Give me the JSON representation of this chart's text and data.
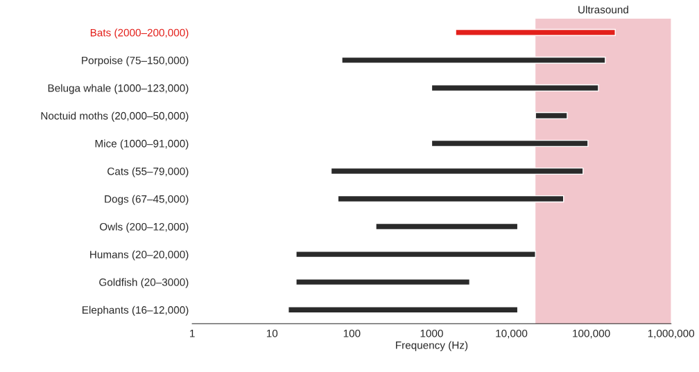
{
  "chart_data": {
    "type": "bar",
    "orientation": "horizontal",
    "xlabel": "Frequency (Hz)",
    "log": "x",
    "categories": [
      "Bats (2000–200,000)",
      "Porpoise (75–150,000)",
      "Beluga whale (1000–123,000)",
      "Noctuid moths (20,000–50,000)",
      "Mice (1000–91,000)",
      "Cats (55–79,000)",
      "Dogs (67–45,000)",
      "Owls (200–12,000)",
      "Humans (20–20,000)",
      "Goldfish (20–3000)",
      "Elephants (16–12,000)"
    ],
    "base": [
      2000,
      75,
      1000,
      20000,
      1000,
      55,
      67,
      200,
      20,
      20,
      16
    ],
    "values": [
      198000,
      149925,
      122000,
      30000,
      90000,
      78945,
      44933,
      11800,
      19980,
      2980,
      11984
    ],
    "colors": [
      "#e3201b",
      "#2a2a2a",
      "#2a2a2a",
      "#2a2a2a",
      "#2a2a2a",
      "#2a2a2a",
      "#2a2a2a",
      "#2a2a2a",
      "#2a2a2a",
      "#2a2a2a",
      "#2a2a2a"
    ],
    "xlim": [
      1,
      1000000
    ],
    "xticks": [
      1,
      10,
      100,
      1000,
      {
        "value": 10000,
        "label": "10,000"
      },
      {
        "value": 100000,
        "label": "100,000"
      },
      {
        "value": 1000000,
        "label": "1,000,000"
      }
    ],
    "bands": [
      {
        "axis": "x",
        "from": 20000,
        "to": 1000000,
        "label": "Ultrasound",
        "color": "#f2c6cc"
      }
    ],
    "grid": false
  }
}
